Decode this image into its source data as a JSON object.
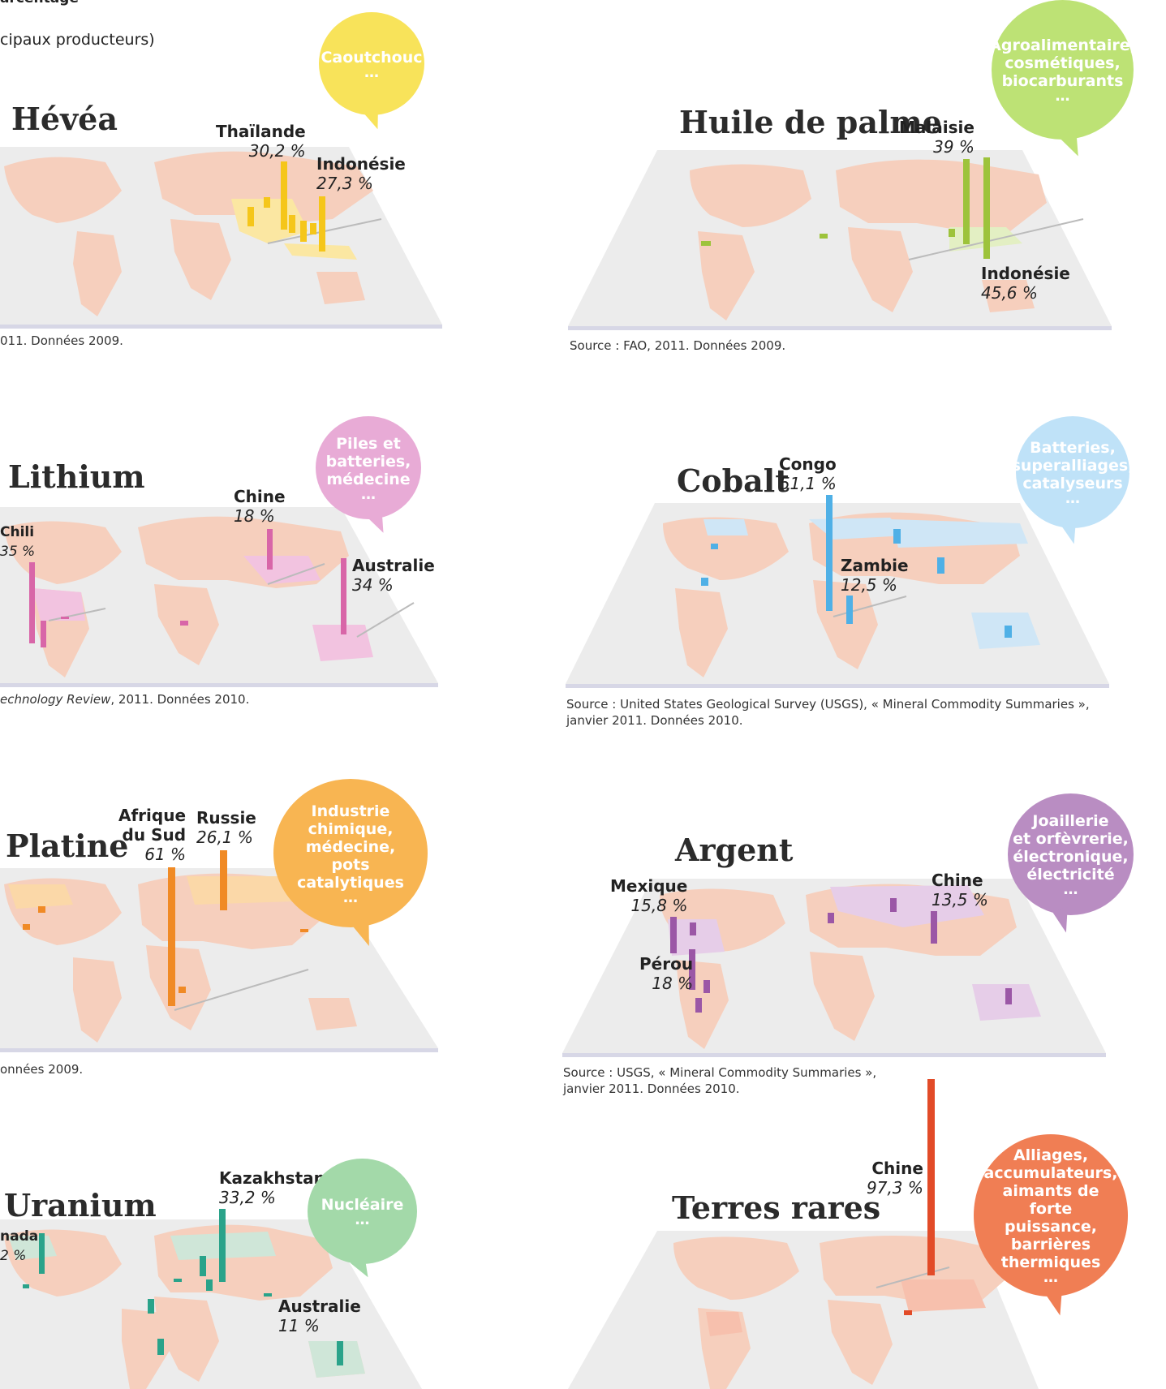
{
  "fragments": {
    "top_line": "arcentage",
    "subtitle": "cipaux producteurs)"
  },
  "colors": {
    "land": "#f6cfbd",
    "plane": "#ececec",
    "plane_edge": "#d7d7e6",
    "hevea": "#f5c61a",
    "palme": "#9dc33b",
    "lithium": "#d866a8",
    "cobalt": "#4fb0e6",
    "platine": "#f08a25",
    "argent": "#9b57a6",
    "uranium": "#2aa38a",
    "terres": "#e24b28"
  },
  "panels": {
    "hevea": {
      "title": "Hévéa",
      "source": "011. Données 2009.",
      "bubble": {
        "text": "Caoutchouc",
        "dots": "…"
      }
    },
    "palme": {
      "title": "Huile de palme",
      "source": "Source : FAO, 2011. Données 2009.",
      "bubble": {
        "text": "Agroalimentaire,\ncosmétiques,\nbiocarburants",
        "dots": "…"
      }
    },
    "lithium": {
      "title": "Lithium",
      "source_italic": "echnology Review",
      "source_rest": ", 2011. Données 2010.",
      "bubble": {
        "text": "Piles et\nbatteries,\nmédecine",
        "dots": "…"
      }
    },
    "cobalt": {
      "title": "Cobalt",
      "source_line1": "Source : United States Geological Survey (USGS), « Mineral Commodity Summaries »,",
      "source_line2": "janvier 2011. Données 2010.",
      "bubble": {
        "text": "Batteries,\nsuperalliages,\ncatalyseurs",
        "dots": "…"
      }
    },
    "platine": {
      "title": "Platine",
      "source": "onnées 2009.",
      "bubble": {
        "text": "Industrie chimique,\nmédecine,\npots catalytiques",
        "dots": "…"
      }
    },
    "argent": {
      "title": "Argent",
      "source_line1": "Source : USGS, « Mineral Commodity Summaries »,",
      "source_line2": "janvier 2011. Données 2010.",
      "bubble": {
        "text": "Joaillerie\net orfèvrerie,\nélectronique,\nélectricité",
        "dots": "…"
      }
    },
    "uranium": {
      "title": "Uranium",
      "bubble": {
        "text": "Nucléaire",
        "dots": "…"
      }
    },
    "terres": {
      "title": "Terres rares",
      "bubble": {
        "text": "Alliages,\naccumulateurs,\naimants de forte\npuissance,\nbarrières\nthermiques",
        "dots": "…"
      }
    }
  },
  "chart_data": [
    {
      "type": "bar",
      "title": "Hévéa",
      "categories": [
        "Thaïlande",
        "Indonésie"
      ],
      "labels": [
        "30,2 %",
        "27,3 %"
      ],
      "values": [
        30.2,
        27.3
      ]
    },
    {
      "type": "bar",
      "title": "Huile de palme",
      "categories": [
        "Malaisie",
        "Indonésie"
      ],
      "labels": [
        "39 %",
        "45,6 %"
      ],
      "values": [
        39,
        45.6
      ]
    },
    {
      "type": "bar",
      "title": "Lithium",
      "categories": [
        "Chili",
        "Chine",
        "Australie"
      ],
      "labels": [
        "35 %",
        "18 %",
        "34 %"
      ],
      "values": [
        35,
        18,
        34
      ]
    },
    {
      "type": "bar",
      "title": "Cobalt",
      "categories": [
        "Congo",
        "Zambie"
      ],
      "labels": [
        "51,1 %",
        "12,5 %"
      ],
      "values": [
        51.1,
        12.5
      ]
    },
    {
      "type": "bar",
      "title": "Platine",
      "categories": [
        "Afrique du Sud",
        "Russie"
      ],
      "labels": [
        "61 %",
        "26,1 %"
      ],
      "values": [
        61,
        26.1
      ]
    },
    {
      "type": "bar",
      "title": "Argent",
      "categories": [
        "Mexique",
        "Pérou",
        "Chine"
      ],
      "labels": [
        "15,8 %",
        "18 %",
        "13,5 %"
      ],
      "values": [
        15.8,
        18,
        13.5
      ]
    },
    {
      "type": "bar",
      "title": "Uranium",
      "categories": [
        "nada",
        "Kazakhstan",
        "Australie"
      ],
      "labels": [
        "2 %",
        "33,2 %",
        "11 %"
      ],
      "values": [
        null,
        33.2,
        11
      ]
    },
    {
      "type": "bar",
      "title": "Terres rares",
      "categories": [
        "Chine"
      ],
      "labels": [
        "97,3 %"
      ],
      "values": [
        97.3
      ]
    }
  ],
  "labels": {
    "hevea": [
      {
        "country": "Thaïlande",
        "value": "30,2 %"
      },
      {
        "country": "Indonésie",
        "value": "27,3 %"
      }
    ],
    "palme": [
      {
        "country": "Malaisie",
        "value": "39 %"
      },
      {
        "country": "Indonésie",
        "value": "45,6 %"
      }
    ],
    "lithium": [
      {
        "country": "Chili",
        "value": "35 %"
      },
      {
        "country": "Chine",
        "value": "18 %"
      },
      {
        "country": "Australie",
        "value": "34 %"
      }
    ],
    "cobalt": [
      {
        "country": "Congo",
        "value": "51,1 %"
      },
      {
        "country": "Zambie",
        "value": "12,5 %"
      }
    ],
    "platine": [
      {
        "country": "Afrique\ndu Sud",
        "value": "61 %"
      },
      {
        "country": "Russie",
        "value": "26,1 %"
      }
    ],
    "argent": [
      {
        "country": "Mexique",
        "value": "15,8 %"
      },
      {
        "country": "Pérou",
        "value": "18 %"
      },
      {
        "country": "Chine",
        "value": "13,5 %"
      }
    ],
    "uranium": [
      {
        "country": "nada",
        "value": "2 %"
      },
      {
        "country": "Kazakhstan",
        "value": "33,2 %"
      },
      {
        "country": "Australie",
        "value": "11 %"
      }
    ],
    "terres": [
      {
        "country": "Chine",
        "value": "97,3 %"
      }
    ]
  }
}
